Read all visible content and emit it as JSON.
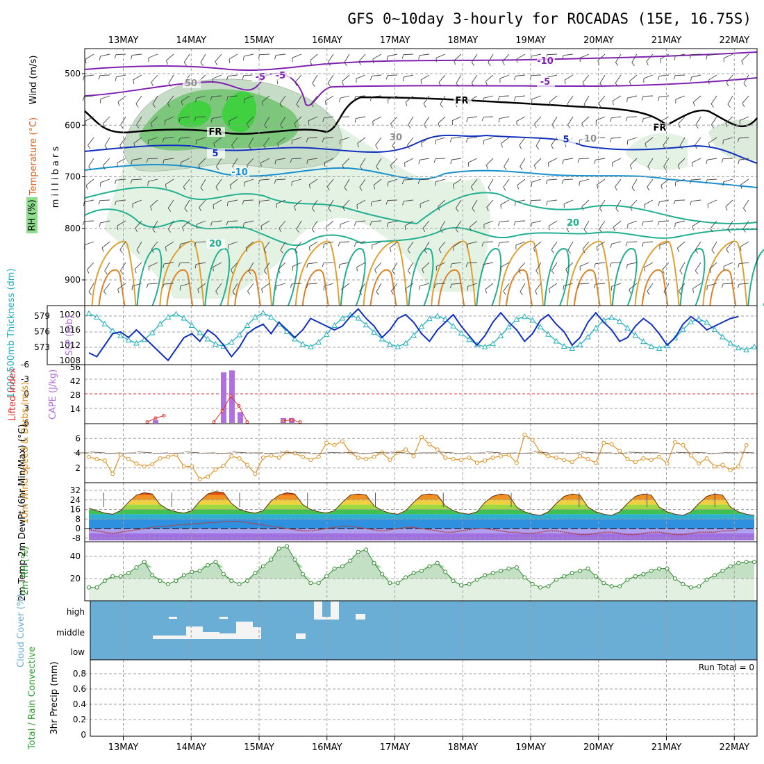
{
  "header": {
    "title": "GFS 0~10day 3-hourly for ROCADAS (15E, 16.75S)"
  },
  "colors": {
    "rh_green": "#8fdc8f",
    "temperature_label": "#e06020",
    "wind_label": "#000000",
    "thickness": "#20b0c0",
    "slp": "#1030c0",
    "lifted_index": "#e03030",
    "cape": "#b070e0",
    "wind10m": "#e09020",
    "rh2m": "#30a030",
    "cloud": "#6aaed6",
    "precip_total": "#30a030",
    "precip_conv": "#e03030"
  },
  "chart_data": [
    {
      "id": "upper",
      "type": "contour",
      "x": [
        "13MAY",
        "14MAY",
        "15MAY",
        "16MAY",
        "17MAY",
        "18MAY",
        "19MAY",
        "20MAY",
        "21MAY",
        "22MAY"
      ],
      "ylabel": "m i l l i b a r s",
      "side_labels": {
        "temperature": "Temperature (°C)",
        "wind": "Wind (m/s)",
        "rh": "RH (%)"
      },
      "yticks": [
        500,
        600,
        700,
        800,
        900
      ],
      "contour_labels": [
        "-10",
        "-5",
        "-5",
        "FR",
        "FR",
        "FR",
        "-5",
        "5",
        "5",
        "-10",
        "20",
        "20",
        "30",
        "10",
        "50"
      ]
    },
    {
      "id": "thickness-slp",
      "type": "line",
      "ylabel_left": "1000-500mb Thickness (dm)",
      "ylabel_right": "SLP (mb)",
      "yticks_left": [
        "579",
        "576",
        "573"
      ],
      "yticks_right": [
        "1020",
        "1016",
        "1012",
        "1008"
      ],
      "series": [
        {
          "name": "Thickness",
          "values": [
            579.5,
            578.8,
            577.5,
            576.2,
            575.2,
            574.4,
            573.8,
            574.5,
            575.8,
            577.5,
            578.8,
            579.4,
            578.6,
            577.2,
            575.8,
            574.6,
            573.6,
            573.2,
            574,
            575.4,
            577.2,
            578.8,
            579.6,
            578.8,
            577.5,
            576,
            574.6,
            573.6,
            573.1,
            574,
            575.5,
            577.2,
            578.6,
            579.2,
            578.6,
            577.3,
            575.9,
            574.6,
            573.6,
            573.1,
            573.8,
            575.3,
            577,
            578.5,
            579,
            578.4,
            577.1,
            575.7,
            574.5,
            573.5,
            573.1,
            573.7,
            575.2,
            576.9,
            578.4,
            578.9,
            578.2,
            576.9,
            575.5,
            574.2,
            573.2,
            572.8,
            573.5,
            575,
            576.7,
            578.2,
            578.7,
            578,
            576.7,
            575.3,
            574.1,
            573.2,
            572.8,
            573.3,
            574.8,
            576.4,
            577.9,
            578.4,
            577.8,
            576.4,
            575,
            573.8,
            572.9,
            572.5,
            573.1
          ]
        },
        {
          "name": "SLP",
          "values": [
            1010,
            1009,
            1012,
            1015,
            1015.5,
            1014,
            1016,
            1014,
            1012,
            1010,
            1008,
            1011,
            1014,
            1015,
            1013,
            1016,
            1014.5,
            1012,
            1009,
            1011.5,
            1015,
            1016.5,
            1017.5,
            1015,
            1018,
            1016,
            1014,
            1016,
            1019,
            1018,
            1017,
            1016,
            1017,
            1019.5,
            1021.5,
            1019,
            1017,
            1014,
            1016,
            1019,
            1020,
            1018,
            1015,
            1013,
            1016,
            1018,
            1020,
            1017,
            1014.5,
            1012,
            1014.5,
            1018,
            1020.5,
            1018,
            1016,
            1013,
            1015,
            1018.5,
            1020,
            1017.5,
            1015.5,
            1012,
            1014,
            1018,
            1020.5,
            1018,
            1016,
            1013,
            1014,
            1017,
            1019,
            1017.5,
            1015,
            1012,
            1014,
            1017.5,
            1019.5,
            1018,
            1016,
            1017,
            1018,
            1019,
            1019.5
          ]
        }
      ]
    },
    {
      "id": "li-cape",
      "type": "bar",
      "ylabel_left": "Lifted Index",
      "ylabel_right": "CAPE (J/kg)",
      "yticks_left": [
        "-6",
        "-3",
        "0",
        "3",
        "6"
      ],
      "yticks_right": [
        "56",
        "42",
        "28",
        "14"
      ],
      "cape": {
        "x": [
          "14MAY 12Z",
          "14MAY 15Z",
          "14MAY 18Z",
          "15MAY 09Z",
          "15MAY 12Z",
          "14MAY 00Z"
        ],
        "values": [
          51,
          53,
          11,
          5,
          5,
          3
        ]
      },
      "lifted_index": {
        "x": [
          "13MAY 12Z",
          "13MAY 15Z",
          "13MAY 18Z",
          "14MAY 09Z",
          "14MAY 12Z",
          "14MAY 15Z",
          "14MAY 18Z",
          "14MAY 21Z",
          "15MAY 09Z",
          "15MAY 12Z",
          "15MAY 15Z"
        ],
        "values": [
          5.8,
          5,
          4.5,
          5.8,
          3.5,
          0.5,
          2.5,
          5.8,
          5.5,
          5.4,
          5.8
        ]
      }
    },
    {
      "id": "wind10m",
      "type": "line",
      "ylabel": "10m Wind Speed & Barbs (m/s)",
      "yticks": [
        "6",
        "4",
        "2"
      ],
      "series": [
        {
          "name": "10m Wind Speed",
          "values": [
            3.5,
            3.2,
            3,
            1.2,
            3.8,
            3.2,
            2.6,
            2.2,
            2.5,
            3.3,
            3.5,
            3.8,
            2.2,
            2.2,
            0.5,
            0.8,
            1.8,
            2.3,
            3.6,
            3.3,
            2.4,
            1.2,
            3.4,
            3.7,
            3.4,
            4.1,
            4,
            3.5,
            3.1,
            3.5,
            5.4,
            5.1,
            5.6,
            4.1,
            3.4,
            3.2,
            3.5,
            4.1,
            3.1,
            4.1,
            4.5,
            3.6,
            6.2,
            5.2,
            4.5,
            3.4,
            3.2,
            3.1,
            3.4,
            2.7,
            3,
            3.4,
            3.6,
            3.8,
            2.7,
            6.5,
            5.8,
            4.1,
            3.6,
            3.4,
            3.1,
            2.8,
            3.6,
            3.2,
            2.7,
            5.4,
            5.2,
            4.3,
            3.2,
            2.8,
            3.3,
            3.1,
            3.5,
            2.6,
            5.5,
            5.1,
            3.7,
            2.6,
            3.3,
            2.2,
            2.4,
            1.7,
            2.2,
            5.1
          ]
        }
      ]
    },
    {
      "id": "temp2m",
      "type": "area",
      "ylabel": "2m Temp 2m DewPt (6hr Min/Max) (°C)",
      "yticks": [
        "32",
        "24",
        "16",
        "8",
        "0",
        "-8"
      ],
      "series": [
        {
          "name": "2m Temp",
          "values": [
            17,
            15,
            13,
            12,
            15,
            22,
            28,
            30,
            29,
            20,
            16,
            14,
            13,
            15,
            23,
            29,
            31,
            30,
            21,
            16,
            14,
            13,
            15,
            23,
            28,
            30,
            29,
            20,
            16,
            14,
            13,
            15,
            22,
            28,
            29,
            28,
            19,
            15,
            13,
            12,
            15,
            22,
            28,
            29,
            28,
            19,
            15,
            13,
            12,
            14,
            22,
            27,
            29,
            28,
            18,
            14,
            12,
            11,
            14,
            21,
            27,
            29,
            28,
            18,
            14,
            12,
            11,
            14,
            21,
            27,
            29,
            28,
            18,
            14,
            12,
            11,
            14,
            21,
            27,
            29,
            28,
            18,
            14,
            12,
            11
          ]
        },
        {
          "name": "2m DewPt",
          "values": [
            -1,
            -2,
            -3,
            -4,
            -3,
            -2,
            -1,
            0,
            1,
            2,
            2,
            3,
            3,
            4,
            4,
            5,
            5,
            6,
            6,
            6,
            5,
            4,
            3,
            2,
            1,
            0,
            -1,
            -2,
            -2,
            -1,
            0,
            1,
            2,
            2,
            1,
            0,
            -1,
            -2,
            -1,
            0,
            1,
            1,
            0,
            -1,
            -2,
            -3,
            -3,
            -2,
            -1,
            0,
            0,
            -1,
            -2,
            -3,
            -3,
            -4,
            -4,
            -3,
            -2,
            -2,
            -3,
            -4,
            -5,
            -5,
            -4,
            -3,
            -3,
            -4,
            -5,
            -5,
            -4,
            -3,
            -3,
            -4,
            -5,
            -5,
            -4,
            -3,
            -3,
            -3,
            -2,
            -2,
            -1
          ]
        }
      ]
    },
    {
      "id": "rh2m",
      "type": "area",
      "ylabel": "2m RH (%)",
      "yticks": [
        "40",
        "20"
      ],
      "series": [
        {
          "name": "2m RH",
          "values": [
            12,
            12,
            18,
            22,
            22,
            25,
            30,
            35,
            23,
            18,
            15,
            18,
            23,
            26,
            27,
            32,
            35,
            24,
            18,
            15,
            18,
            25,
            31,
            37,
            47,
            49,
            37,
            24,
            16,
            16,
            22,
            29,
            31,
            36,
            44,
            46,
            34,
            24,
            16,
            16,
            21,
            25,
            27,
            31,
            34,
            26,
            18,
            14,
            15,
            19,
            23,
            25,
            27,
            29,
            30,
            21,
            15,
            12,
            13,
            19,
            22,
            25,
            27,
            29,
            22,
            16,
            13,
            13,
            19,
            22,
            24,
            27,
            29,
            29,
            20,
            15,
            12,
            13,
            19,
            23,
            27,
            31,
            34,
            35,
            35
          ]
        }
      ]
    },
    {
      "id": "cloud",
      "type": "heatmap",
      "ylabel": "Cloud Cover (%)",
      "yticks": [
        "high",
        "middle",
        "low"
      ]
    },
    {
      "id": "precip",
      "type": "bar",
      "ylabel_left": "Total / Rain Convective",
      "ylabel_right": "3hr Precip (mm)",
      "yticks": [
        "0.8",
        "0.6",
        "0.4",
        "0.2",
        "0"
      ],
      "run_total": "Run Total = 0",
      "values": []
    }
  ]
}
